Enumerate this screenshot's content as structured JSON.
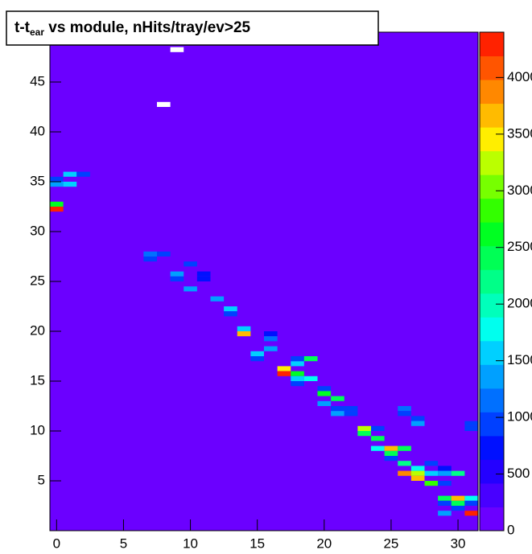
{
  "chart_data": {
    "type": "heatmap",
    "title_parts": [
      "t-t",
      "ear",
      " vs module, nHits/tray/ev>25"
    ],
    "xlim": [
      -0.5,
      31.5
    ],
    "xticks": [
      0,
      5,
      10,
      15,
      20,
      25,
      30
    ],
    "ylim": [
      0,
      50
    ],
    "yticks": [
      5,
      10,
      15,
      20,
      25,
      30,
      35,
      40,
      45
    ],
    "zlim": [
      0,
      4400
    ],
    "zticks": [
      0,
      500,
      1000,
      1500,
      2000,
      2500,
      3000,
      3500,
      4000
    ],
    "cell_height": 0.5,
    "palette": [
      "#6b00ff",
      "#4800ff",
      "#2400ff",
      "#0010ff",
      "#0040ff",
      "#0070ff",
      "#00a0ff",
      "#00d0ff",
      "#00ffee",
      "#00ffbb",
      "#00ff88",
      "#00ff55",
      "#00ff22",
      "#33ff00",
      "#77ff00",
      "#bbff00",
      "#ffee00",
      "#ffbb00",
      "#ff8800",
      "#ff5500",
      "#ff2200"
    ],
    "overflow_color": "#ffffff",
    "cells": [
      [
        9,
        48,
        4600
      ],
      [
        8,
        42.5,
        4600
      ],
      [
        0,
        35,
        1000
      ],
      [
        1,
        35.5,
        1500
      ],
      [
        2,
        35.5,
        900
      ],
      [
        0,
        34.5,
        1300
      ],
      [
        1,
        34.5,
        1500
      ],
      [
        0,
        32.5,
        2600
      ],
      [
        0,
        32,
        4300
      ],
      [
        7,
        27,
        1000
      ],
      [
        8,
        27.5,
        900
      ],
      [
        7,
        27.5,
        1100
      ],
      [
        10,
        26.5,
        1000
      ],
      [
        9,
        25.5,
        1300
      ],
      [
        9,
        25,
        900
      ],
      [
        11,
        25.5,
        800
      ],
      [
        11,
        25,
        800
      ],
      [
        10,
        24,
        1300
      ],
      [
        12,
        23,
        1300
      ],
      [
        13,
        22,
        1500
      ],
      [
        13,
        21.5,
        900
      ],
      [
        14,
        20,
        1600
      ],
      [
        14,
        19.5,
        3700
      ],
      [
        16,
        19.5,
        800
      ],
      [
        16,
        19,
        1200
      ],
      [
        15,
        17.5,
        1500
      ],
      [
        16,
        18,
        1400
      ],
      [
        15,
        17,
        1000
      ],
      [
        17,
        16,
        3400
      ],
      [
        17,
        15.5,
        4200
      ],
      [
        18,
        16.5,
        1600
      ],
      [
        18,
        17,
        900
      ],
      [
        19,
        17,
        2500
      ],
      [
        18,
        15.5,
        2600
      ],
      [
        18,
        15,
        1500
      ],
      [
        19,
        15,
        1700
      ],
      [
        18,
        14.5,
        900
      ],
      [
        20,
        14,
        1000
      ],
      [
        20,
        13.5,
        2600
      ],
      [
        21,
        13,
        2500
      ],
      [
        20,
        12.5,
        1400
      ],
      [
        21,
        12,
        900
      ],
      [
        22,
        12,
        1000
      ],
      [
        21,
        11.5,
        1300
      ],
      [
        22,
        11.5,
        900
      ],
      [
        26,
        12,
        1200
      ],
      [
        26,
        11.5,
        900
      ],
      [
        27,
        11,
        900
      ],
      [
        27,
        10.5,
        1400
      ],
      [
        31,
        10,
        1000
      ],
      [
        31,
        10.5,
        900
      ],
      [
        23,
        10,
        3300
      ],
      [
        23,
        9.5,
        2500
      ],
      [
        24,
        10,
        900
      ],
      [
        24,
        9,
        2400
      ],
      [
        24,
        8,
        1700
      ],
      [
        25,
        8,
        3700
      ],
      [
        26,
        8,
        2400
      ],
      [
        25,
        7.5,
        2400
      ],
      [
        25,
        7,
        900
      ],
      [
        26,
        6.5,
        2200
      ],
      [
        27,
        6,
        1700
      ],
      [
        28,
        6.5,
        900
      ],
      [
        29,
        6,
        800
      ],
      [
        26,
        5.5,
        3800
      ],
      [
        27,
        5.5,
        3300
      ],
      [
        27,
        5,
        3700
      ],
      [
        28,
        5.5,
        1500
      ],
      [
        29,
        5.5,
        1400
      ],
      [
        30,
        5.5,
        2300
      ],
      [
        28,
        4.5,
        2800
      ],
      [
        29,
        4.5,
        900
      ],
      [
        29,
        3,
        2500
      ],
      [
        29,
        2.5,
        900
      ],
      [
        30,
        3,
        3700
      ],
      [
        30,
        2.5,
        2400
      ],
      [
        31,
        3,
        1700
      ],
      [
        31,
        2.5,
        900
      ],
      [
        29,
        1.5,
        1300
      ],
      [
        30,
        2,
        900
      ],
      [
        31,
        1.5,
        4300
      ]
    ]
  }
}
